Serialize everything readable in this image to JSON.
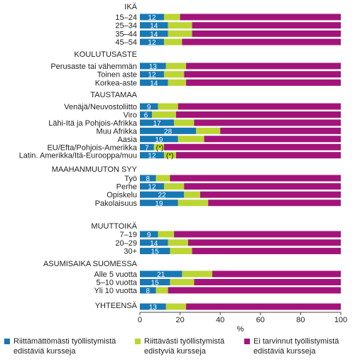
{
  "chart_data": {
    "type": "bar",
    "orientation": "horizontal",
    "stacked": true,
    "x_axis_unit": "%",
    "xlim": [
      0,
      100
    ],
    "x_ticks": [
      0,
      20,
      40,
      60,
      80,
      100
    ],
    "grid": false,
    "legend_position": "bottom",
    "series": [
      {
        "name": "Riittämättömästi työllistymistä edistäviä kursseja",
        "color": "#1878b4"
      },
      {
        "name": "Riittävästi työllistymistä edistyviä kursseja",
        "color": "#bcd533"
      },
      {
        "name": "Ei tarvinnut työllistymistä edistäviä kursseja",
        "color": "#a3147a"
      }
    ],
    "groups": [
      {
        "title": "IKÄ",
        "rows": [
          {
            "label": "15–24",
            "values": [
              12,
              8,
              80
            ],
            "data_label": "12"
          },
          {
            "label": "25–34",
            "values": [
              14,
              12,
              74
            ],
            "data_label": "14"
          },
          {
            "label": "35–44",
            "values": [
              14,
              12,
              74
            ],
            "data_label": "14"
          },
          {
            "label": "45–54",
            "values": [
              12,
              9,
              79
            ],
            "data_label": "12"
          }
        ]
      },
      {
        "title": "KOULUTUSASTE",
        "rows": [
          {
            "label": "Perusaste tai vähemmän",
            "values": [
              13,
              10,
              77
            ],
            "data_label": "13"
          },
          {
            "label": "Toinen aste",
            "values": [
              12,
              10,
              78
            ],
            "data_label": "12"
          },
          {
            "label": "Korkea-aste",
            "values": [
              14,
              9,
              77
            ],
            "data_label": "14"
          }
        ]
      },
      {
        "title": "TAUSTAMAA",
        "rows": [
          {
            "label": "Venäjä/Neuvostoliitto",
            "values": [
              9,
              10,
              81
            ],
            "data_label": "9"
          },
          {
            "label": "Viro",
            "values": [
              6,
              12,
              82
            ],
            "data_label": "6"
          },
          {
            "label": "Lähi-Itä ja Pohjois-Afrikka",
            "values": [
              17,
              10,
              73
            ],
            "data_label": "17"
          },
          {
            "label": "Muu Afrikka",
            "values": [
              28,
              12,
              60
            ],
            "data_label": "28"
          },
          {
            "label": "Aasia",
            "values": [
              19,
              13,
              68
            ],
            "data_label": "19"
          },
          {
            "label": "EU/Efta/Pohjois-Amerikka",
            "values": [
              7,
              5,
              88
            ],
            "data_label": "7",
            "annotation": "(*)"
          },
          {
            "label": "Latin. Amerikka/Itä-Eurooppa/muu",
            "values": [
              12,
              6,
              82
            ],
            "data_label": "12",
            "annotation": "(*)"
          }
        ]
      },
      {
        "title": "MAAHANMUUTON SYY",
        "rows": [
          {
            "label": "Työ",
            "values": [
              8,
              7,
              85
            ],
            "data_label": "8"
          },
          {
            "label": "Perhe",
            "values": [
              12,
              10,
              78
            ],
            "data_label": "12"
          },
          {
            "label": "Opiskelu",
            "values": [
              22,
              8,
              70
            ],
            "data_label": "22"
          },
          {
            "label": "Pakolaisuus",
            "values": [
              19,
              15,
              66
            ],
            "data_label": "19"
          }
        ]
      },
      {
        "title": "MUUTTOIKÄ",
        "rows": [
          {
            "label": "7–19",
            "values": [
              9,
              8,
              83
            ],
            "data_label": "9"
          },
          {
            "label": "20–29",
            "values": [
              14,
              10,
              76
            ],
            "data_label": "14"
          },
          {
            "label": "30+",
            "values": [
              15,
              11,
              74
            ],
            "data_label": "15"
          }
        ]
      },
      {
        "title": "ASUMISAIKA SUOMESSA",
        "rows": [
          {
            "label": "Alle 5 vuotta",
            "values": [
              21,
              15,
              64
            ],
            "data_label": "21"
          },
          {
            "label": "5–10 vuotta",
            "values": [
              15,
              12,
              73
            ],
            "data_label": "15"
          },
          {
            "label": "Yli 10 vuotta",
            "values": [
              8,
              6,
              86
            ],
            "data_label": "8"
          }
        ]
      },
      {
        "title": "YHTEENSÄ",
        "rows": [
          {
            "label": "",
            "values": [
              13,
              10,
              77
            ],
            "data_label": "13"
          }
        ]
      }
    ]
  }
}
